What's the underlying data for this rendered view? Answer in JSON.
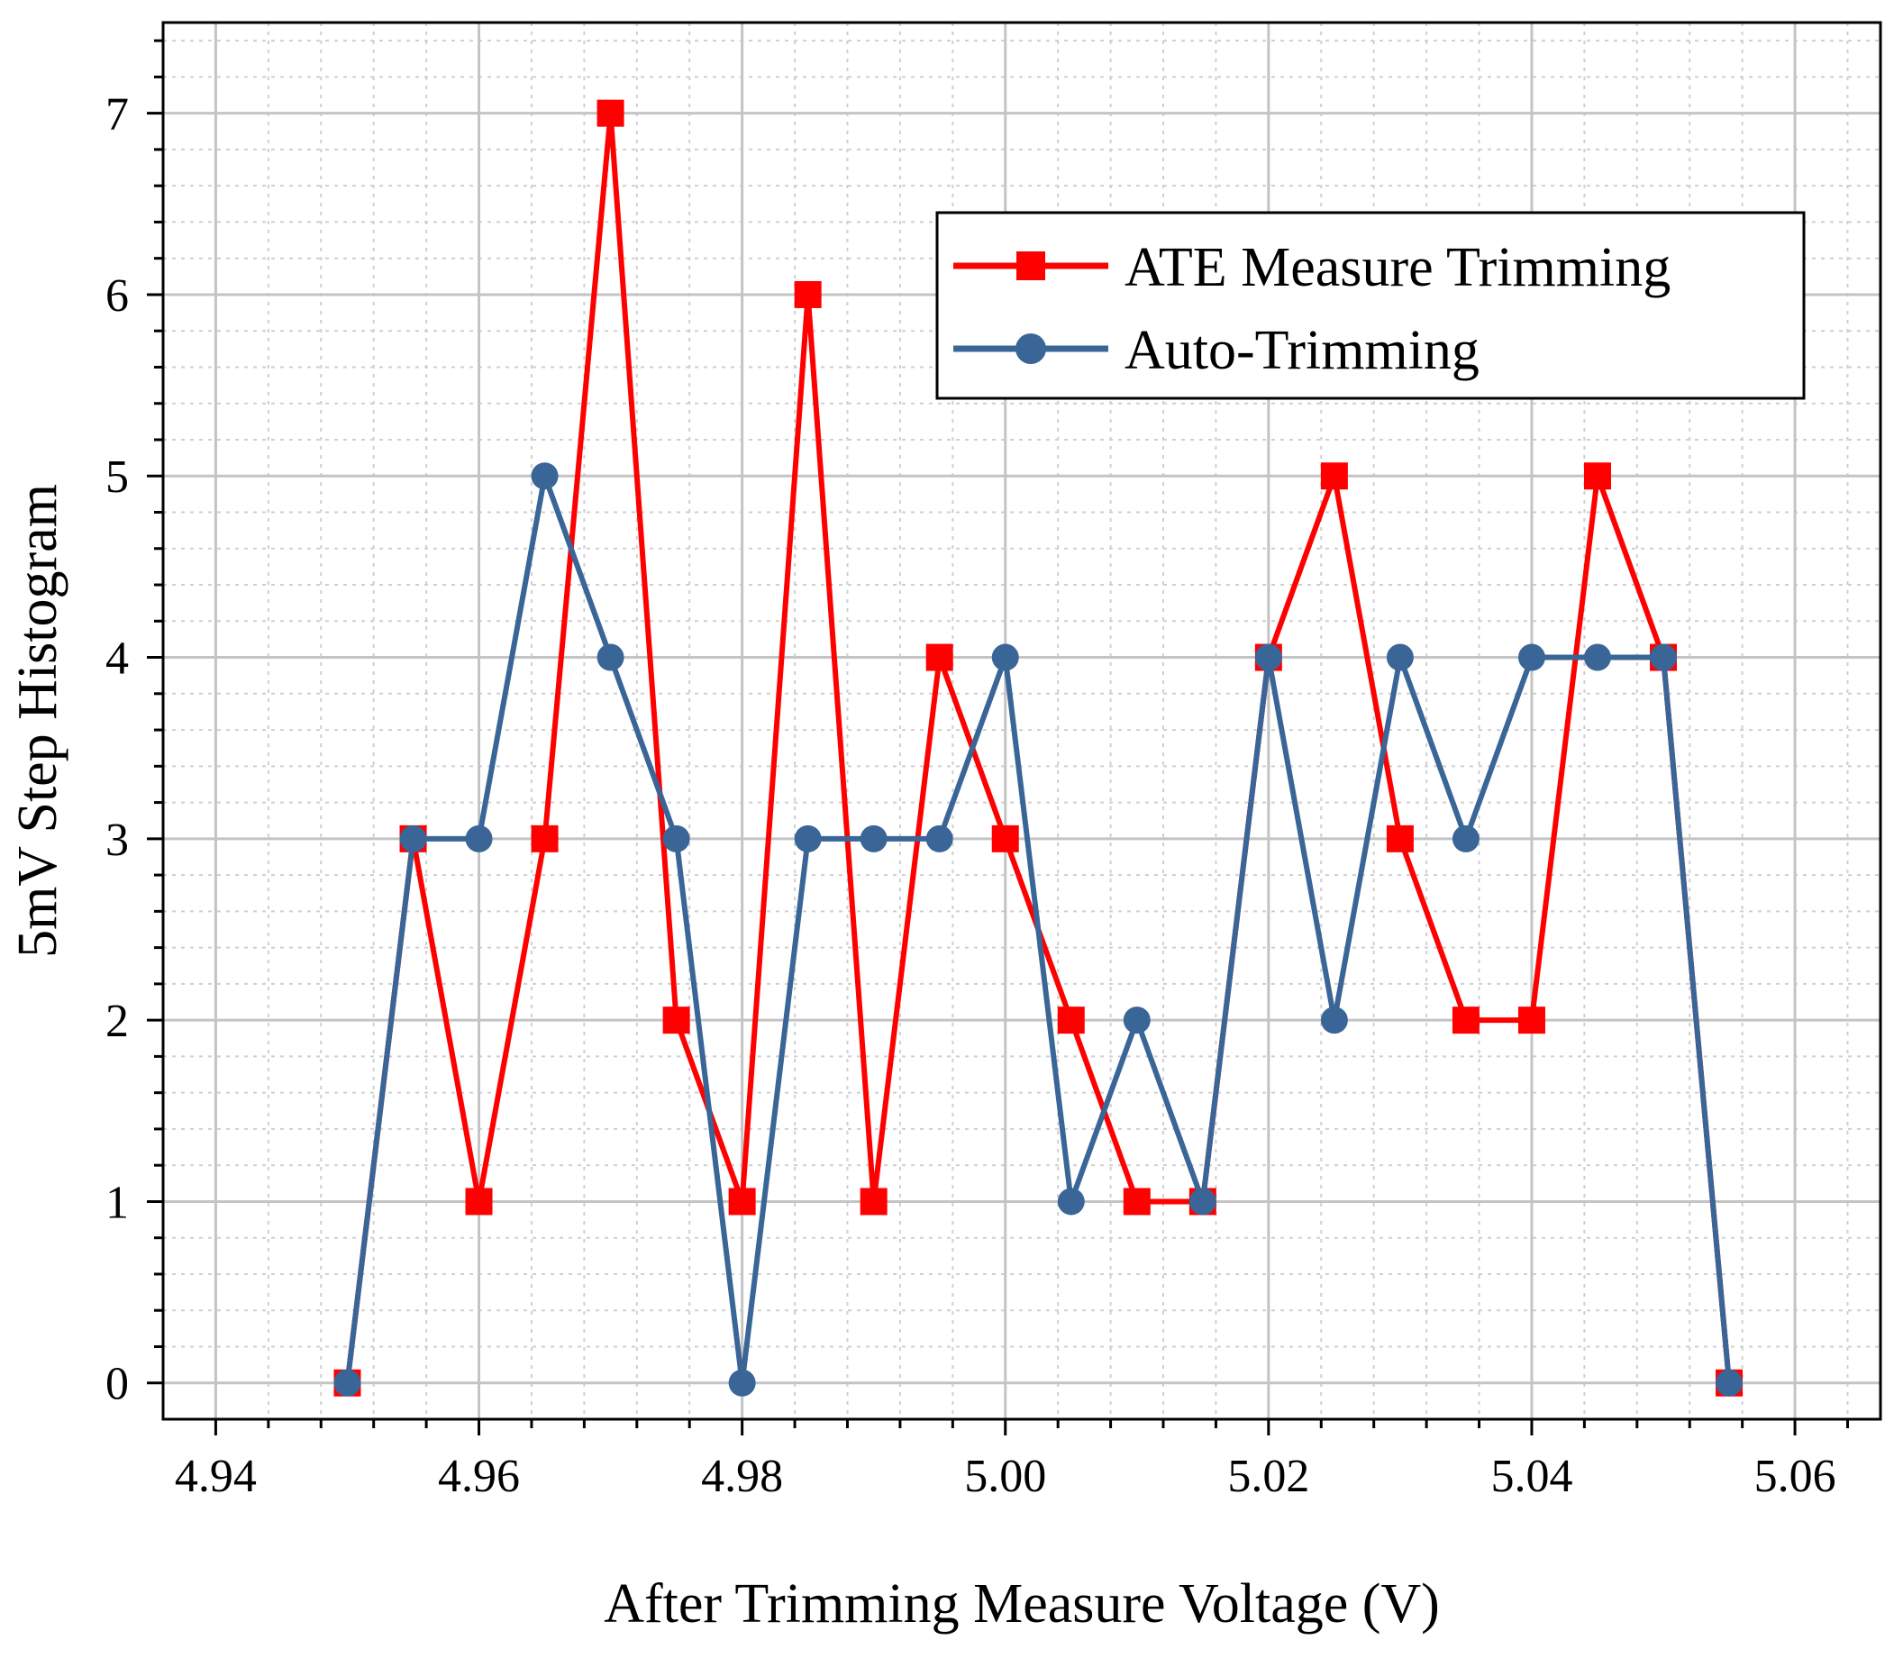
{
  "chart_data": {
    "type": "line",
    "title": "",
    "xlabel": "After Trimming Measure Voltage (V)",
    "ylabel": "5mV Step Histogram",
    "xlim": [
      4.936,
      5.0665
    ],
    "ylim": [
      -0.2,
      7.5
    ],
    "grid": true,
    "legend_position": "top-right",
    "x": [
      4.95,
      4.955,
      4.96,
      4.965,
      4.97,
      4.975,
      4.98,
      4.985,
      4.99,
      4.995,
      5.0,
      5.005,
      5.01,
      5.015,
      5.02,
      5.025,
      5.03,
      5.035,
      5.04,
      5.045,
      5.05,
      5.055
    ],
    "x_ticks": [
      {
        "value": 4.94,
        "label": "4.94"
      },
      {
        "value": 4.96,
        "label": "4.96"
      },
      {
        "value": 4.98,
        "label": "4.98"
      },
      {
        "value": 5.0,
        "label": "5.00"
      },
      {
        "value": 5.02,
        "label": "5.02"
      },
      {
        "value": 5.04,
        "label": "5.04"
      },
      {
        "value": 5.06,
        "label": "5.06"
      }
    ],
    "y_ticks": [
      {
        "value": 0,
        "label": "0"
      },
      {
        "value": 1,
        "label": "1"
      },
      {
        "value": 2,
        "label": "2"
      },
      {
        "value": 3,
        "label": "3"
      },
      {
        "value": 4,
        "label": "4"
      },
      {
        "value": 5,
        "label": "5"
      },
      {
        "value": 6,
        "label": "6"
      },
      {
        "value": 7,
        "label": "7"
      }
    ],
    "series": [
      {
        "name": "ATE Measure Trimming",
        "color": "#ff0000",
        "marker": "square",
        "values": [
          0,
          3,
          1,
          3,
          7,
          2,
          1,
          6,
          1,
          4,
          3,
          2,
          1,
          1,
          4,
          5,
          3,
          2,
          2,
          5,
          4,
          0
        ]
      },
      {
        "name": "Auto-Trimming",
        "color": "#3a6597",
        "marker": "circle",
        "values": [
          0,
          3,
          3,
          5,
          4,
          3,
          0,
          3,
          3,
          3,
          4,
          1,
          2,
          1,
          4,
          2,
          4,
          3,
          4,
          4,
          4,
          0
        ]
      }
    ]
  }
}
